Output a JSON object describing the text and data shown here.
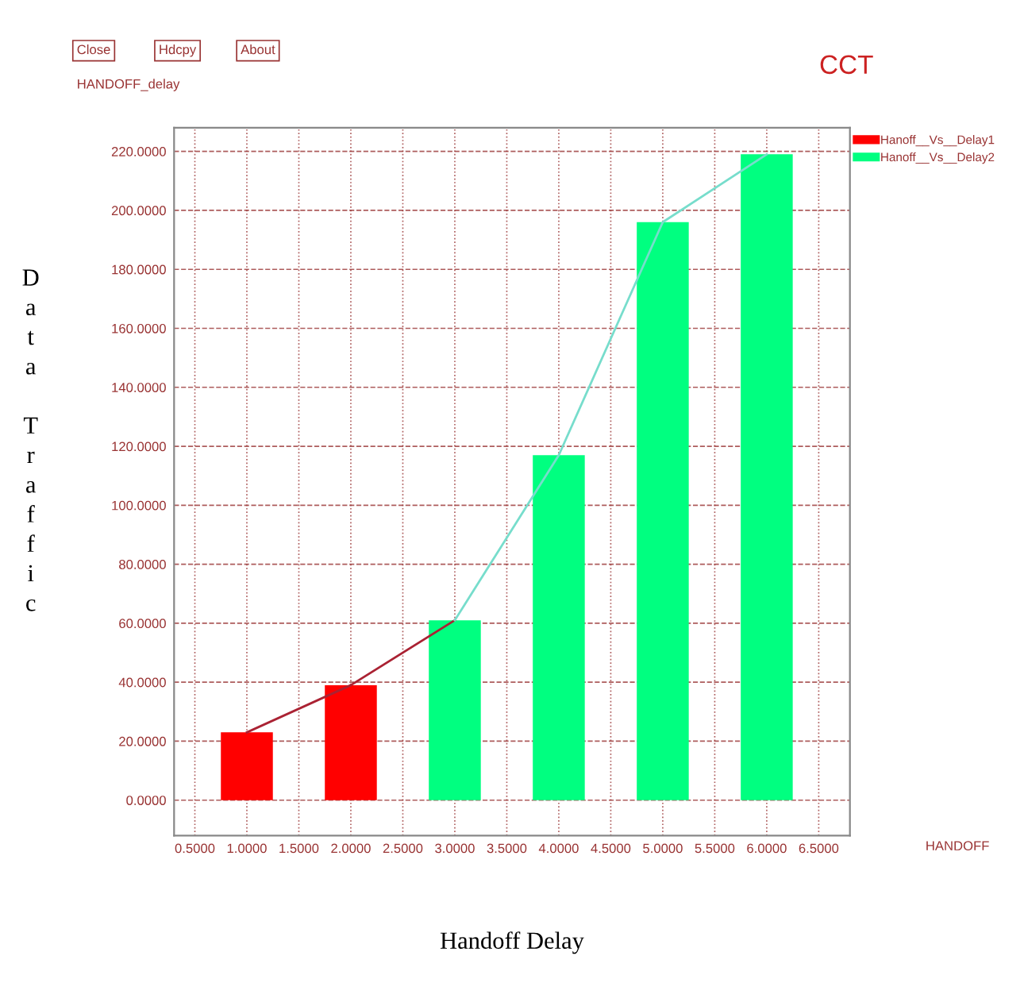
{
  "chart_data": {
    "type": "bar",
    "title": "CCT",
    "xlabel": "Handoff Delay",
    "ylabel": "Data Traffic",
    "annotations": [
      "Close",
      "Hdcpy",
      "About",
      "HANDOFF_delay",
      "HANDOFF"
    ],
    "series": [
      {
        "name": "Hanoff__Vs__Delay1",
        "color": "#ff0000",
        "x": [
          1,
          2
        ],
        "values": [
          23,
          39
        ]
      },
      {
        "name": "Hanoff__Vs__Delay2",
        "color": "#00ff80",
        "x": [
          3,
          4,
          5,
          6
        ],
        "values": [
          61,
          117,
          196,
          219
        ]
      },
      {
        "type": "line",
        "color": "#aa2233",
        "x": [
          1,
          2,
          3
        ],
        "values": [
          23,
          39,
          61
        ]
      },
      {
        "type": "line",
        "color": "#77ddcc",
        "x": [
          3,
          4,
          5,
          6
        ],
        "values": [
          61,
          117,
          196,
          219
        ]
      }
    ],
    "xlim": [
      0.3,
      6.8
    ],
    "ylim": [
      -12,
      228
    ],
    "xticks": [
      {
        "value": 0.5,
        "label": "0.5000"
      },
      {
        "value": 1,
        "label": "1.0000"
      },
      {
        "value": 1.5,
        "label": "1.5000"
      },
      {
        "value": 2,
        "label": "2.0000"
      },
      {
        "value": 2.5,
        "label": "2.5000"
      },
      {
        "value": 3,
        "label": "3.0000"
      },
      {
        "value": 3.5,
        "label": "3.5000"
      },
      {
        "value": 4,
        "label": "4.0000"
      },
      {
        "value": 4.5,
        "label": "4.5000"
      },
      {
        "value": 5,
        "label": "5.0000"
      },
      {
        "value": 5.5,
        "label": "5.5000"
      },
      {
        "value": 6,
        "label": "6.0000"
      },
      {
        "value": 6.5,
        "label": "6.5000"
      }
    ],
    "yticks": [
      {
        "value": 0,
        "label": "0.0000"
      },
      {
        "value": 20,
        "label": "20.0000"
      },
      {
        "value": 40,
        "label": "40.0000"
      },
      {
        "value": 60,
        "label": "60.0000"
      },
      {
        "value": 80,
        "label": "80.0000"
      },
      {
        "value": 100,
        "label": "100.0000"
      },
      {
        "value": 120,
        "label": "120.0000"
      },
      {
        "value": 140,
        "label": "140.0000"
      },
      {
        "value": 160,
        "label": "160.0000"
      },
      {
        "value": 180,
        "label": "180.0000"
      },
      {
        "value": 200,
        "label": "200.0000"
      },
      {
        "value": 220,
        "label": "220.0000"
      }
    ],
    "grid": true,
    "legend": "right",
    "line_style": "solid"
  }
}
